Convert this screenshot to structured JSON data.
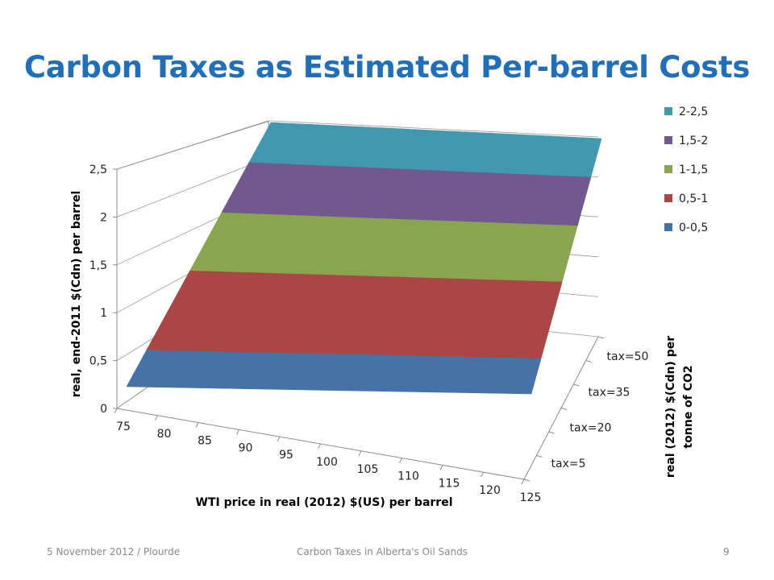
{
  "title": "Carbon Taxes as Estimated Per-barrel Costs",
  "footer": {
    "left": "5 November 2012 / Plourde",
    "center": "Carbon Taxes in Alberta's Oil Sands",
    "page_number": "9"
  },
  "chart_data": {
    "type": "surface",
    "xlabel": "WTI price in real (2012) $(US) per barrel",
    "ylabel": "real (2012) $(Cdn) per tonne of CO2",
    "zlabel": "real, end-2011 $(Cdn) per barrel",
    "x": [
      75,
      80,
      85,
      90,
      95,
      100,
      105,
      110,
      115,
      120,
      125
    ],
    "y": [
      "tax=5",
      "tax=20",
      "tax=35",
      "tax=50"
    ],
    "y_values": [
      5,
      20,
      35,
      50
    ],
    "zlim": [
      0,
      2.5
    ],
    "z_ticks": [
      "0",
      "0,5",
      "1",
      "1,5",
      "2",
      "2,5"
    ],
    "grid": true,
    "legend_position": "right",
    "bands": [
      {
        "name": "0-0,5",
        "color": "#4572a7"
      },
      {
        "name": "0,5-1",
        "color": "#aa4643"
      },
      {
        "name": "1-1,5",
        "color": "#89a54e"
      },
      {
        "name": "1,5-2",
        "color": "#71588f"
      },
      {
        "name": "2-2,5",
        "color": "#4198af"
      }
    ],
    "surface": [
      {
        "y": 5,
        "z": [
          0.2,
          0.2,
          0.2,
          0.2,
          0.2,
          0.2,
          0.2,
          0.2,
          0.2,
          0.2,
          0.2
        ]
      },
      {
        "y": 20,
        "z": [
          0.8,
          0.8,
          0.8,
          0.8,
          0.8,
          0.8,
          0.8,
          0.8,
          0.8,
          0.8,
          0.8
        ]
      },
      {
        "y": 35,
        "z": [
          1.4,
          1.4,
          1.4,
          1.4,
          1.4,
          1.4,
          1.4,
          1.4,
          1.4,
          1.4,
          1.4
        ]
      },
      {
        "y": 50,
        "z": [
          2.5,
          2.5,
          2.5,
          2.5,
          2.5,
          2.5,
          2.5,
          2.5,
          2.5,
          2.5,
          2.5
        ]
      }
    ]
  }
}
